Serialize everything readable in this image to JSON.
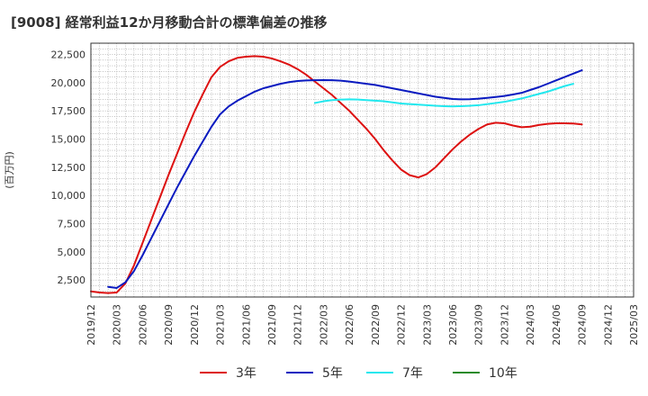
{
  "chart_data": {
    "type": "line",
    "title": "[9008]  経常利益12か月移動合計の標準偏差の推移",
    "ylabel": "(百万円)",
    "xlabel": "",
    "ylim": [
      1000,
      23500
    ],
    "yticks": [
      2500,
      5000,
      7500,
      10000,
      12500,
      15000,
      17500,
      20000,
      22500
    ],
    "ytick_labels": [
      "2,500",
      "5,000",
      "7,500",
      "10,000",
      "12,500",
      "15,000",
      "17,500",
      "20,000",
      "22,500"
    ],
    "xtick_labels": [
      "2019/12",
      "2020/03",
      "2020/06",
      "2020/09",
      "2020/12",
      "2021/03",
      "2021/06",
      "2021/09",
      "2021/12",
      "2022/03",
      "2022/06",
      "2022/09",
      "2022/12",
      "2023/03",
      "2023/06",
      "2023/09",
      "2023/12",
      "2024/03",
      "2024/06",
      "2024/09",
      "2024/12",
      "2025/03"
    ],
    "grid": true,
    "legend_position": "bottom",
    "series": [
      {
        "name": "3年",
        "color": "#dd1111",
        "start": "2019/12",
        "values": [
          1500,
          1400,
          1350,
          1400,
          2200,
          3800,
          5800,
          7800,
          9800,
          11800,
          13700,
          15600,
          17400,
          19000,
          20500,
          21400,
          21900,
          22200,
          22300,
          22350,
          22300,
          22150,
          21900,
          21600,
          21200,
          20700,
          20100,
          19500,
          18900,
          18200,
          17500,
          16700,
          15900,
          15000,
          14000,
          13100,
          12300,
          11800,
          11600,
          11900,
          12500,
          13300,
          14100,
          14800,
          15400,
          15900,
          16300,
          16450,
          16400,
          16200,
          16050,
          16100,
          16250,
          16350,
          16400,
          16400,
          16380,
          16300
        ]
      },
      {
        "name": "5年",
        "color": "#0a1ac0",
        "start": "2020/02",
        "values": [
          1900,
          1800,
          2300,
          3300,
          4700,
          6200,
          7700,
          9200,
          10700,
          12100,
          13500,
          14800,
          16100,
          17200,
          17900,
          18400,
          18800,
          19200,
          19500,
          19700,
          19900,
          20050,
          20150,
          20200,
          20220,
          20230,
          20220,
          20180,
          20100,
          20000,
          19900,
          19800,
          19650,
          19500,
          19350,
          19200,
          19050,
          18900,
          18750,
          18650,
          18550,
          18520,
          18530,
          18580,
          18650,
          18730,
          18820,
          18950,
          19100,
          19350,
          19600,
          19900,
          20200,
          20500,
          20800,
          21100
        ]
      },
      {
        "name": "7年",
        "color": "#22e8ee",
        "start": "2022/02",
        "values": [
          18200,
          18350,
          18450,
          18500,
          18520,
          18500,
          18450,
          18400,
          18350,
          18250,
          18150,
          18100,
          18050,
          18000,
          17950,
          17920,
          17900,
          17920,
          17950,
          18000,
          18100,
          18200,
          18300,
          18450,
          18600,
          18800,
          19000,
          19200,
          19450,
          19700,
          19900
        ]
      },
      {
        "name": "10年",
        "color": "#2a8a2a",
        "start": "2024/12",
        "values": []
      }
    ]
  }
}
